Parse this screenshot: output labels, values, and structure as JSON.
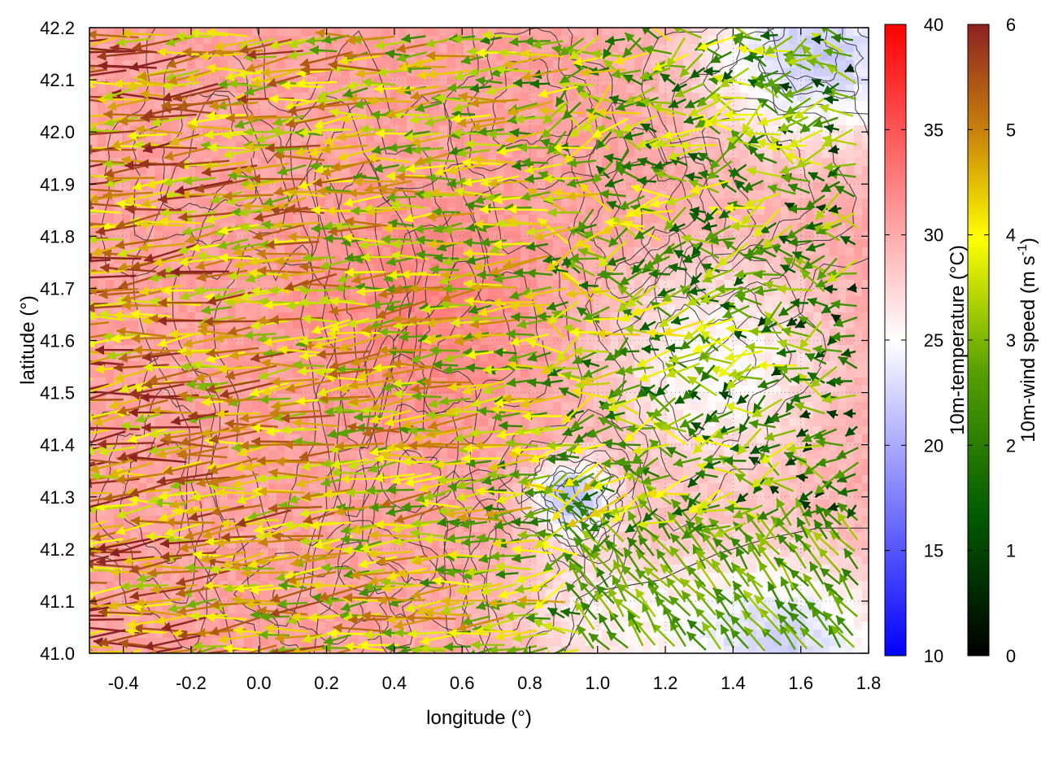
{
  "chart_data": {
    "type": "heatmap",
    "title": "",
    "xlabel": "longitude (°)",
    "ylabel": "latitude (°)",
    "xlim": [
      -0.5,
      1.8
    ],
    "ylim": [
      41.0,
      42.2
    ],
    "x_ticks": [
      "-0.4",
      "-0.2",
      "0.0",
      "0.2",
      "0.4",
      "0.6",
      "0.8",
      "1.0",
      "1.2",
      "1.4",
      "1.6",
      "1.8"
    ],
    "y_ticks": [
      "41.0",
      "41.1",
      "41.2",
      "41.3",
      "41.4",
      "41.5",
      "41.6",
      "41.7",
      "41.8",
      "41.9",
      "42.0",
      "42.1",
      "42.2"
    ],
    "grid": true,
    "temperature_colorbar": {
      "label": "10m-temperature (°C)",
      "range": [
        10,
        40
      ],
      "ticks": [
        "10",
        "15",
        "20",
        "25",
        "30",
        "35",
        "40"
      ],
      "colors": [
        "#0000ff",
        "#ffffff",
        "#ff0000"
      ]
    },
    "wind_colorbar": {
      "label_main": "10m-wind speed (m s",
      "label_sup": "-1",
      "label_end": ")",
      "range": [
        0,
        6
      ],
      "ticks": [
        "0",
        "1",
        "2",
        "3",
        "4",
        "5",
        "6"
      ],
      "colors": [
        "#000000",
        "#006400",
        "#5aa000",
        "#ffff00",
        "#c8820a",
        "#8b2222"
      ]
    },
    "temperature_field_description": {
      "warm_region": {
        "lon": [
          -0.5,
          0.7
        ],
        "lat": [
          41.0,
          42.2
        ],
        "temperature_c": 30
      },
      "cool_region_northeast": {
        "lon": [
          1.2,
          1.8
        ],
        "lat": [
          41.9,
          42.2
        ],
        "temperature_c": 22
      },
      "cool_region_southeast": {
        "lon": [
          1.2,
          1.8
        ],
        "lat": [
          41.0,
          41.2
        ],
        "temperature_c": 22
      },
      "cool_pocket": {
        "lon": [
          0.8,
          1.0
        ],
        "lat": [
          41.25,
          41.35
        ],
        "temperature_c": 20
      }
    },
    "wind_field_description": {
      "dominant_direction": "easterly (arrows pointing west)",
      "west_speed_ms": 5.5,
      "east_speed_ms": 2.5,
      "southeast_direction": "south-easterly (arrows pointing north-west)"
    }
  }
}
